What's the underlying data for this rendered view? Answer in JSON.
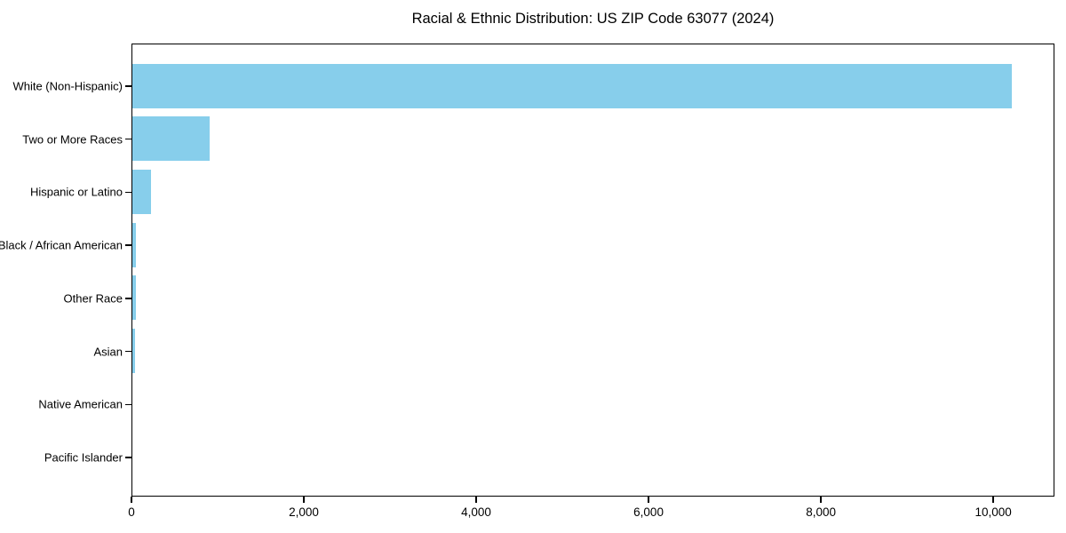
{
  "chart_data": {
    "type": "bar",
    "orientation": "horizontal",
    "title": "Racial & Ethnic Distribution: US ZIP Code 63077 (2024)",
    "categories": [
      "White (Non-Hispanic)",
      "Two or More Races",
      "Hispanic or Latino",
      "Black / African American",
      "Other Race",
      "Asian",
      "Native American",
      "Pacific Islander"
    ],
    "values": [
      10200,
      895,
      215,
      45,
      40,
      30,
      0,
      0
    ],
    "xlabel": "",
    "ylabel": "",
    "xlim": [
      0,
      10710
    ],
    "xticks": [
      {
        "value": 0,
        "label": "0"
      },
      {
        "value": 2000,
        "label": "2,000"
      },
      {
        "value": 4000,
        "label": "4,000"
      },
      {
        "value": 6000,
        "label": "6,000"
      },
      {
        "value": 8000,
        "label": "8,000"
      },
      {
        "value": 10000,
        "label": "10,000"
      }
    ],
    "bar_color": "#87CEEB",
    "axis_color": "#000000",
    "text_color": "#000000",
    "background_color": "#ffffff",
    "grid": false,
    "legend": null,
    "category_order": "largest_at_top"
  }
}
